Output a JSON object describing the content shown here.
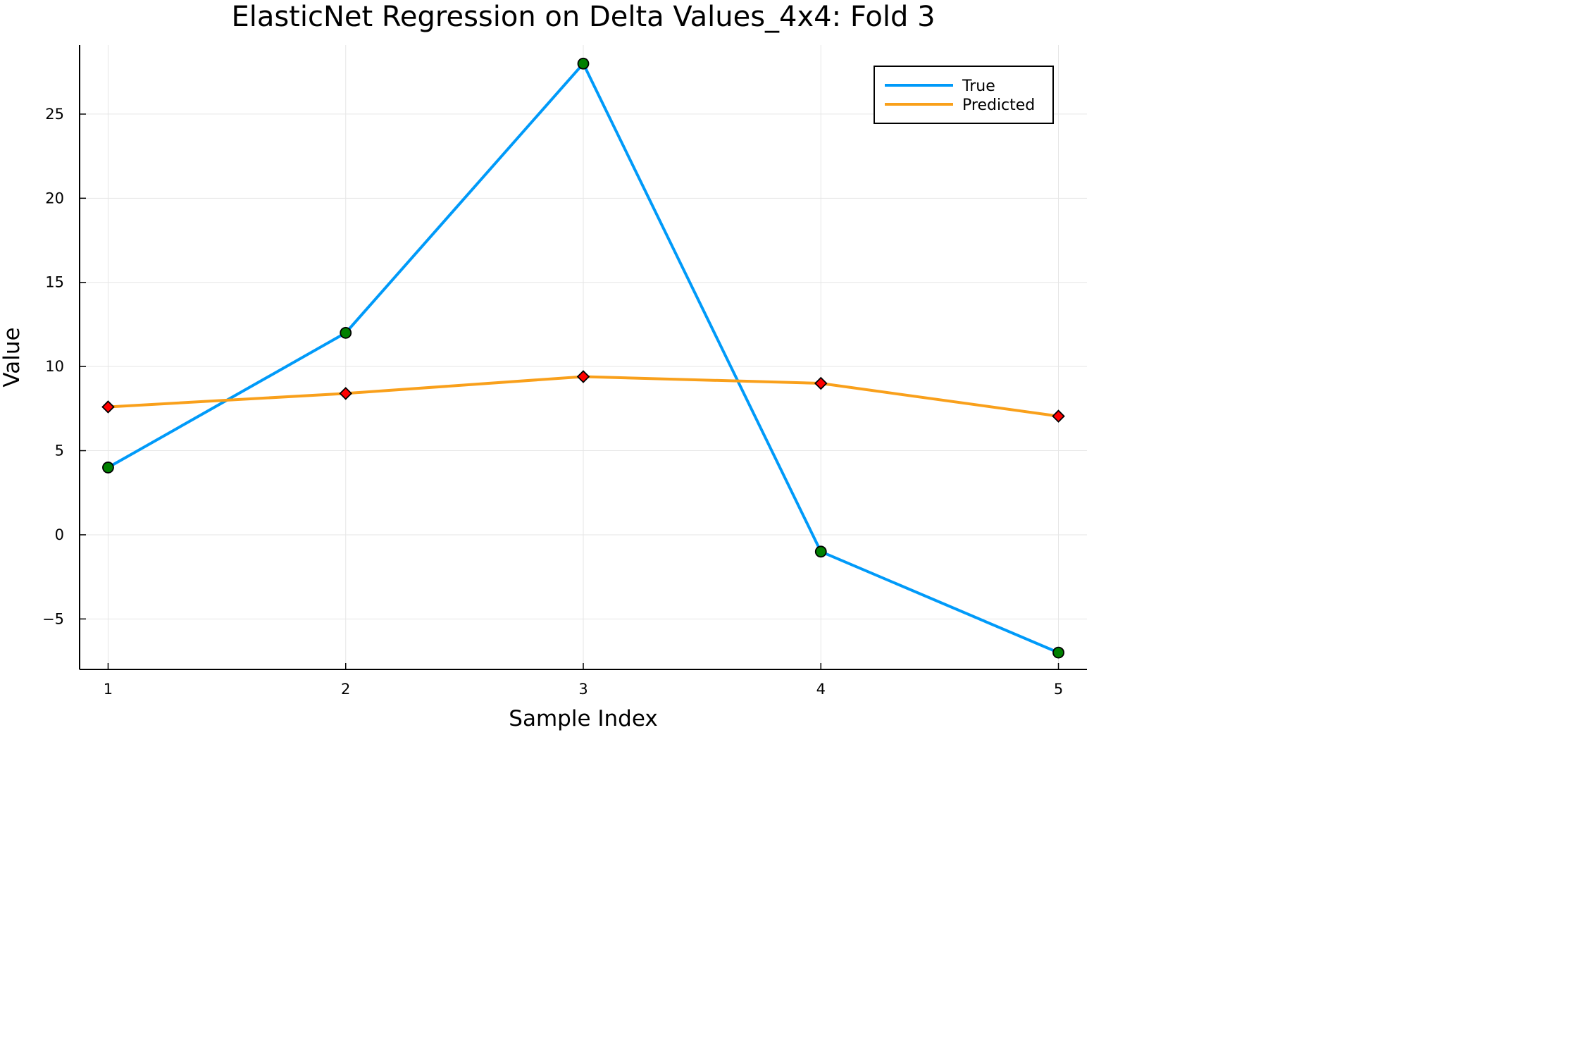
{
  "chart_data": {
    "type": "line",
    "title": "ElasticNet Regression on Delta Values_4x4: Fold 3",
    "xlabel": "Sample Index",
    "ylabel": "Value",
    "x": [
      1,
      2,
      3,
      4,
      5
    ],
    "xlim": [
      0.88,
      5.12
    ],
    "ylim": [
      -8.0,
      29.1
    ],
    "xticks": [
      1,
      2,
      3,
      4,
      5
    ],
    "yticks": [
      -5,
      0,
      5,
      10,
      15,
      20,
      25
    ],
    "ytick_labels": [
      "−5",
      "0",
      "5",
      "10",
      "15",
      "20",
      "25"
    ],
    "grid": true,
    "legend_position": "top-right",
    "series": [
      {
        "name": "True",
        "values": [
          4,
          12,
          28,
          -1,
          -7
        ],
        "line_color": "#009af9",
        "marker": "circle",
        "marker_color": "#008000"
      },
      {
        "name": "Predicted",
        "values": [
          7.6,
          8.4,
          9.4,
          9.0,
          7.05
        ],
        "line_color": "#f9a01b",
        "marker": "diamond",
        "marker_color": "#ff0000"
      }
    ]
  }
}
